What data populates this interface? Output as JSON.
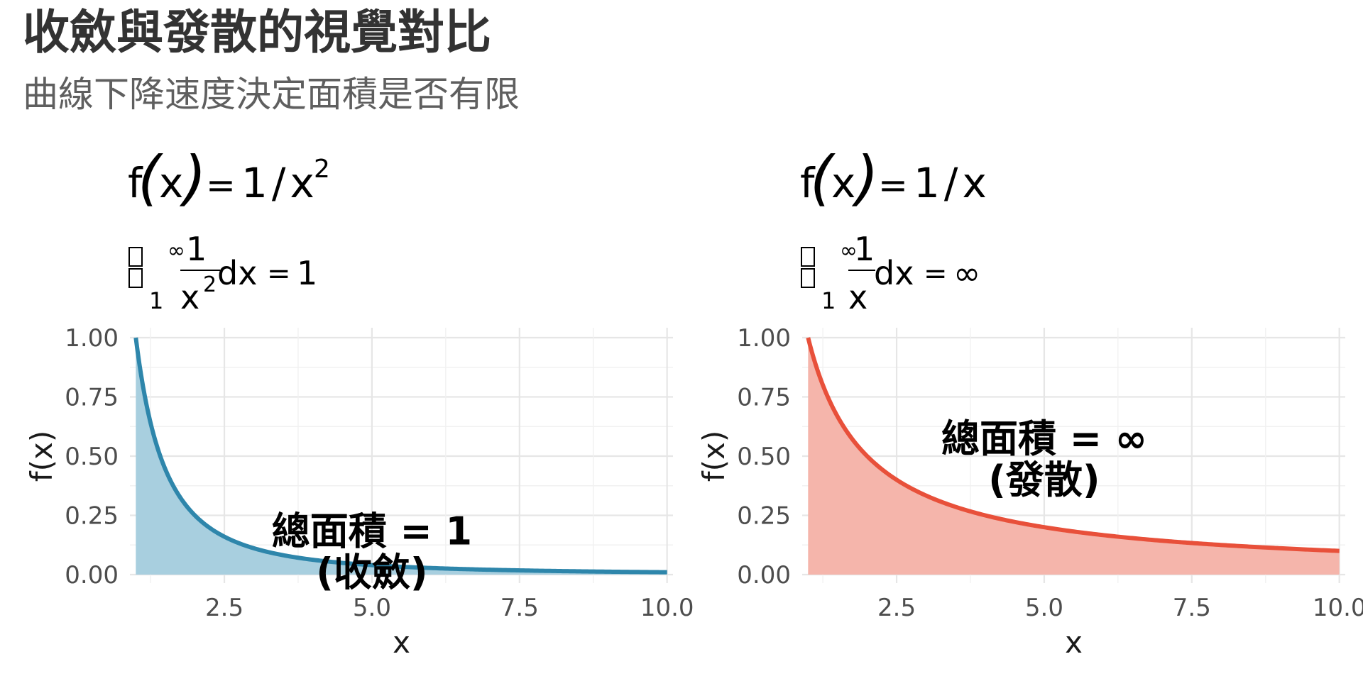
{
  "title": "收斂與發散的視覺對比",
  "subtitle": "曲線下降速度決定面積是否有限",
  "chart_data": [
    {
      "type": "area",
      "formula": {
        "lhs": "f",
        "var": "x",
        "eq": "=",
        "rhs": "1/x",
        "exponent": "2"
      },
      "integral": {
        "lower": "1",
        "upper": "∞",
        "numerator": "1",
        "denominator": "x",
        "denominator_exp": "2",
        "dx": "dx",
        "result": "1"
      },
      "function": "1/x^2",
      "x_range": [
        1,
        10
      ],
      "xlim": [
        0.9,
        10.1
      ],
      "ylim": [
        0,
        1
      ],
      "x_ticks": [
        "2.5",
        "5.0",
        "7.5",
        "10.0"
      ],
      "y_ticks": [
        "0.00",
        "0.25",
        "0.50",
        "0.75",
        "1.00"
      ],
      "xlabel": "x",
      "ylabel": "f(x)",
      "line_color": "#2e86ab",
      "fill_color": "#a8cfdf",
      "annotation": {
        "line1": "總面積 = 1",
        "line2": "(收斂)",
        "x": 5.0,
        "y": 0.11
      },
      "grid": true
    },
    {
      "type": "area",
      "formula": {
        "lhs": "f",
        "var": "x",
        "eq": "=",
        "rhs": "1/x",
        "exponent": ""
      },
      "integral": {
        "lower": "1",
        "upper": "∞",
        "numerator": "1",
        "denominator": "x",
        "denominator_exp": "",
        "dx": "dx",
        "result": "∞"
      },
      "function": "1/x",
      "x_range": [
        1,
        10
      ],
      "xlim": [
        0.9,
        10.1
      ],
      "ylim": [
        0,
        1
      ],
      "x_ticks": [
        "2.5",
        "5.0",
        "7.5",
        "10.0"
      ],
      "y_ticks": [
        "0.00",
        "0.25",
        "0.50",
        "0.75",
        "1.00"
      ],
      "xlabel": "x",
      "ylabel": "f(x)",
      "line_color": "#e8503a",
      "fill_color": "#f5b5ab",
      "annotation": {
        "line1": "總面積 = ∞",
        "line2": "(發散)",
        "x": 5.0,
        "y": 0.5
      },
      "grid": true
    }
  ]
}
